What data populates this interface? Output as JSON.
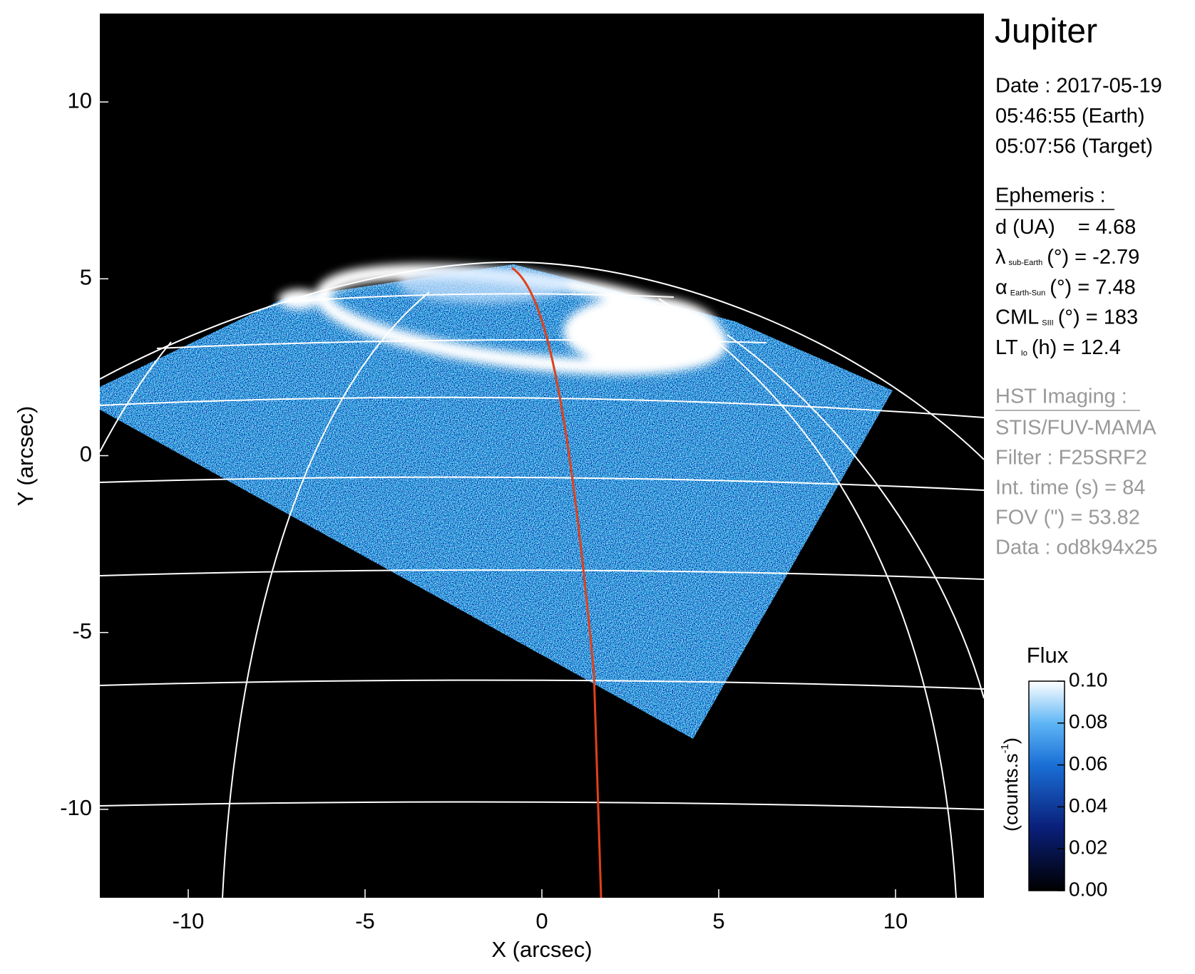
{
  "chart_data": {
    "type": "image",
    "xlabel": "X (arcsec)",
    "ylabel": "Y (arcsec)",
    "xlim": [
      -12.5,
      12.5
    ],
    "ylim": [
      -12.5,
      12.5
    ],
    "xticks": [
      -10,
      -5,
      0,
      5,
      10
    ],
    "yticks": [
      -10,
      -5,
      0,
      5,
      10
    ],
    "colorbar": {
      "title": "Flux",
      "unit": {
        "text": "(counts.s",
        "sup": "-1",
        "end": ")"
      },
      "lim": [
        0,
        0.1
      ],
      "ticks": [
        {
          "value": 0,
          "label": "0.00"
        },
        {
          "value": 0.02,
          "label": "0.02"
        },
        {
          "value": 0.04,
          "label": "0.04"
        },
        {
          "value": 0.06,
          "label": "0.06"
        },
        {
          "value": 0.08,
          "label": "0.08"
        },
        {
          "value": 0.1,
          "label": "0.10"
        }
      ]
    }
  },
  "info": {
    "title": "Jupiter",
    "date": [
      "Date : 2017-05-19",
      "05:46:55 (Earth)",
      "05:07:56 (Target)"
    ],
    "ephemeris": {
      "heading": "Ephemeris :",
      "rows": [
        {
          "label": "d (UA)",
          "rest": "= 4.68"
        },
        {
          "label": "λ",
          "sub": "sub-Earth",
          "rest": "(°) = -2.79"
        },
        {
          "label": "α",
          "sub": "Earth-Sun",
          "rest": "(°) = 7.48"
        },
        {
          "label": "CML",
          "sub": "SIII",
          "rest": "(°) = 183"
        },
        {
          "label": "LT",
          "sub": "Io",
          "rest": "(h) = 12.4"
        }
      ]
    },
    "imaging": {
      "heading": "HST Imaging :",
      "rows": [
        "STIS/FUV-MAMA",
        "Filter : F25SRF2",
        "Int. time (s) = 84",
        "FOV (\") = 53.82",
        "Data : od8k94x25"
      ]
    }
  }
}
